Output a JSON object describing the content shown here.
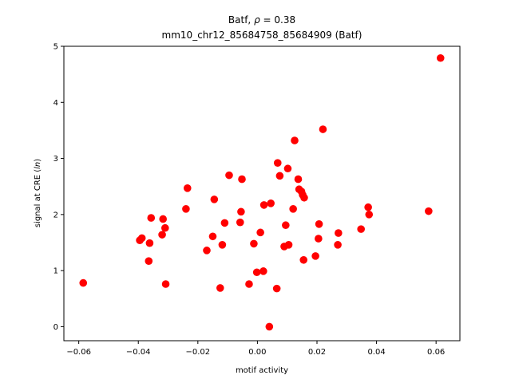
{
  "chart_data": {
    "type": "scatter",
    "title_main": "Batf, ",
    "title_rho_symbol": "ρ",
    "title_rho_value": " = 0.38",
    "subtitle": "mm10_chr12_85684758_85684909 (Batf)",
    "xlabel": "motif activity",
    "ylabel_prefix": "signal at CRE (",
    "ylabel_italic": "ln",
    "ylabel_suffix": ")",
    "xlim": [
      -0.065,
      0.068
    ],
    "ylim": [
      -0.25,
      5.0
    ],
    "xticks": [
      -0.06,
      -0.04,
      -0.02,
      0.0,
      0.02,
      0.04,
      0.06
    ],
    "xtick_labels": [
      "−0.06",
      "−0.04",
      "−0.02",
      "0.00",
      "0.02",
      "0.04",
      "0.06"
    ],
    "yticks": [
      0,
      1,
      2,
      3,
      4,
      5
    ],
    "ytick_labels": [
      "0",
      "1",
      "2",
      "3",
      "4",
      "5"
    ],
    "grid": false,
    "marker_color": "#ff0000",
    "points": [
      {
        "x": -0.0585,
        "y": 0.78
      },
      {
        "x": -0.0395,
        "y": 1.54
      },
      {
        "x": -0.0388,
        "y": 1.58
      },
      {
        "x": -0.0365,
        "y": 1.17
      },
      {
        "x": -0.0362,
        "y": 1.49
      },
      {
        "x": -0.0357,
        "y": 1.94
      },
      {
        "x": -0.032,
        "y": 1.64
      },
      {
        "x": -0.0317,
        "y": 1.92
      },
      {
        "x": -0.031,
        "y": 1.76
      },
      {
        "x": -0.0308,
        "y": 0.76
      },
      {
        "x": -0.024,
        "y": 2.1
      },
      {
        "x": -0.0235,
        "y": 2.47
      },
      {
        "x": -0.017,
        "y": 1.36
      },
      {
        "x": -0.015,
        "y": 1.61
      },
      {
        "x": -0.0145,
        "y": 2.27
      },
      {
        "x": -0.0125,
        "y": 0.69
      },
      {
        "x": -0.0118,
        "y": 1.46
      },
      {
        "x": -0.011,
        "y": 1.85
      },
      {
        "x": -0.0095,
        "y": 2.7
      },
      {
        "x": -0.0058,
        "y": 1.86
      },
      {
        "x": -0.0055,
        "y": 2.05
      },
      {
        "x": -0.0052,
        "y": 2.63
      },
      {
        "x": -0.0028,
        "y": 0.76
      },
      {
        "x": -0.0012,
        "y": 1.48
      },
      {
        "x": -0.0002,
        "y": 0.97
      },
      {
        "x": 0.001,
        "y": 1.68
      },
      {
        "x": 0.002,
        "y": 0.99
      },
      {
        "x": 0.0022,
        "y": 2.17
      },
      {
        "x": 0.004,
        "y": 0.0
      },
      {
        "x": 0.0045,
        "y": 2.2
      },
      {
        "x": 0.0065,
        "y": 0.68
      },
      {
        "x": 0.0068,
        "y": 2.92
      },
      {
        "x": 0.0075,
        "y": 2.69
      },
      {
        "x": 0.009,
        "y": 1.43
      },
      {
        "x": 0.0095,
        "y": 1.81
      },
      {
        "x": 0.0102,
        "y": 2.82
      },
      {
        "x": 0.0105,
        "y": 1.46
      },
      {
        "x": 0.012,
        "y": 2.1
      },
      {
        "x": 0.0125,
        "y": 3.32
      },
      {
        "x": 0.0137,
        "y": 2.63
      },
      {
        "x": 0.014,
        "y": 2.45
      },
      {
        "x": 0.0148,
        "y": 2.41
      },
      {
        "x": 0.0152,
        "y": 2.35
      },
      {
        "x": 0.0155,
        "y": 1.19
      },
      {
        "x": 0.0157,
        "y": 2.3
      },
      {
        "x": 0.0195,
        "y": 1.26
      },
      {
        "x": 0.0205,
        "y": 1.57
      },
      {
        "x": 0.0207,
        "y": 1.83
      },
      {
        "x": 0.022,
        "y": 3.52
      },
      {
        "x": 0.027,
        "y": 1.46
      },
      {
        "x": 0.0272,
        "y": 1.67
      },
      {
        "x": 0.0348,
        "y": 1.74
      },
      {
        "x": 0.0372,
        "y": 2.13
      },
      {
        "x": 0.0375,
        "y": 2.0
      },
      {
        "x": 0.0575,
        "y": 2.06
      },
      {
        "x": 0.0615,
        "y": 4.79
      }
    ]
  }
}
